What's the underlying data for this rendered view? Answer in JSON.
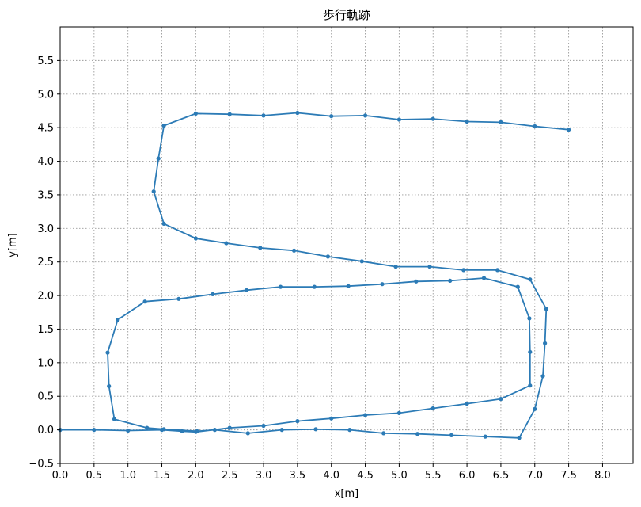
{
  "chart_data": {
    "type": "line",
    "title": "歩行軌跡",
    "xlabel": "x[m]",
    "ylabel": "y[m]",
    "xlim": [
      0,
      8.45
    ],
    "ylim": [
      -0.5,
      6.0
    ],
    "xticks": [
      0.0,
      0.5,
      1.0,
      1.5,
      2.0,
      2.5,
      3.0,
      3.5,
      4.0,
      4.5,
      5.0,
      5.5,
      6.0,
      6.5,
      7.0,
      7.5,
      8.0
    ],
    "xtick_labels": [
      "0.0",
      "0.5",
      "1.0",
      "1.5",
      "2.0",
      "2.5",
      "3.0",
      "3.5",
      "4.0",
      "4.5",
      "5.0",
      "5.5",
      "6.0",
      "6.5",
      "7.0",
      "7.5",
      "8.0"
    ],
    "yticks": [
      -0.5,
      0.0,
      0.5,
      1.0,
      1.5,
      2.0,
      2.5,
      3.0,
      3.5,
      4.0,
      4.5,
      5.0,
      5.5
    ],
    "ytick_labels": [
      "−0.5",
      "0.0",
      "0.5",
      "1.0",
      "1.5",
      "2.0",
      "2.5",
      "3.0",
      "3.5",
      "4.0",
      "4.5",
      "5.0",
      "5.5"
    ],
    "grid": true,
    "color": "#2c7bb6",
    "series": [
      {
        "points": [
          [
            0.0,
            0.0
          ],
          [
            0.5,
            0.0
          ],
          [
            1.0,
            -0.01
          ],
          [
            1.5,
            0.0
          ],
          [
            1.8,
            -0.02
          ],
          [
            2.0,
            -0.03
          ],
          [
            2.5,
            0.03
          ],
          [
            3.0,
            0.06
          ],
          [
            3.5,
            0.13
          ],
          [
            4.0,
            0.17
          ],
          [
            4.5,
            0.22
          ],
          [
            5.0,
            0.25
          ],
          [
            5.5,
            0.32
          ],
          [
            6.0,
            0.39
          ],
          [
            6.5,
            0.46
          ],
          [
            6.93,
            0.66
          ],
          [
            6.93,
            1.16
          ],
          [
            6.92,
            1.66
          ],
          [
            6.75,
            2.13
          ],
          [
            6.25,
            2.26
          ],
          [
            5.75,
            2.22
          ],
          [
            5.25,
            2.21
          ],
          [
            4.75,
            2.17
          ],
          [
            4.25,
            2.14
          ],
          [
            3.75,
            2.13
          ],
          [
            3.25,
            2.13
          ],
          [
            2.75,
            2.08
          ],
          [
            2.25,
            2.02
          ],
          [
            1.75,
            1.95
          ],
          [
            1.25,
            1.91
          ],
          [
            0.85,
            1.64
          ],
          [
            0.7,
            1.15
          ],
          [
            0.72,
            0.65
          ],
          [
            0.8,
            0.16
          ],
          [
            1.28,
            0.03
          ],
          [
            1.53,
            0.01
          ],
          [
            2.02,
            -0.02
          ],
          [
            2.28,
            0.0
          ],
          [
            2.77,
            -0.05
          ],
          [
            3.27,
            0.0
          ],
          [
            3.77,
            0.01
          ],
          [
            4.27,
            0.0
          ],
          [
            4.77,
            -0.05
          ],
          [
            5.27,
            -0.06
          ],
          [
            5.77,
            -0.08
          ],
          [
            6.27,
            -0.1
          ],
          [
            6.77,
            -0.12
          ],
          [
            7.0,
            0.31
          ],
          [
            7.12,
            0.8
          ],
          [
            7.15,
            1.29
          ],
          [
            7.17,
            1.8
          ],
          [
            6.93,
            2.24
          ],
          [
            6.45,
            2.38
          ],
          [
            5.95,
            2.38
          ],
          [
            5.45,
            2.43
          ],
          [
            4.95,
            2.43
          ],
          [
            4.45,
            2.51
          ],
          [
            3.95,
            2.58
          ],
          [
            3.45,
            2.67
          ],
          [
            2.95,
            2.71
          ],
          [
            2.45,
            2.78
          ],
          [
            2.0,
            2.85
          ],
          [
            1.53,
            3.07
          ],
          [
            1.38,
            3.55
          ],
          [
            1.45,
            4.04
          ],
          [
            1.53,
            4.53
          ],
          [
            2.0,
            4.71
          ],
          [
            2.5,
            4.7
          ],
          [
            3.0,
            4.68
          ],
          [
            3.5,
            4.72
          ],
          [
            4.0,
            4.67
          ],
          [
            4.5,
            4.68
          ],
          [
            5.0,
            4.62
          ],
          [
            5.5,
            4.63
          ],
          [
            6.0,
            4.59
          ],
          [
            6.5,
            4.58
          ],
          [
            7.0,
            4.52
          ],
          [
            7.5,
            4.47
          ]
        ]
      }
    ]
  }
}
